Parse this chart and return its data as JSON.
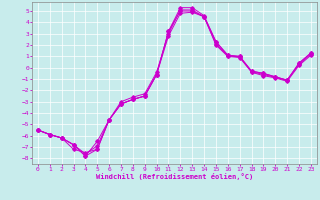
{
  "xlabel": "Windchill (Refroidissement éolien,°C)",
  "bg_color": "#c8ecec",
  "line_color": "#cc00cc",
  "grid_color": "#ffffff",
  "xlim": [
    -0.5,
    23.5
  ],
  "ylim": [
    -8.5,
    5.8
  ],
  "xticks": [
    0,
    1,
    2,
    3,
    4,
    5,
    6,
    7,
    8,
    9,
    10,
    11,
    12,
    13,
    14,
    15,
    16,
    17,
    18,
    19,
    20,
    21,
    22,
    23
  ],
  "yticks": [
    -8,
    -7,
    -6,
    -5,
    -4,
    -3,
    -2,
    -1,
    0,
    1,
    2,
    3,
    4,
    5
  ],
  "series1_x": [
    0,
    1,
    2,
    3,
    4,
    5,
    6,
    7,
    8,
    9,
    10,
    11,
    12,
    13,
    14,
    15,
    16,
    17,
    18,
    19,
    20,
    21,
    22,
    23
  ],
  "series1_y": [
    -5.5,
    -5.9,
    -6.2,
    -6.8,
    -7.8,
    -6.5,
    -4.6,
    -3.2,
    -2.8,
    -2.5,
    -0.6,
    3.2,
    5.3,
    5.3,
    4.6,
    2.3,
    1.1,
    1.0,
    -0.3,
    -0.5,
    -0.8,
    -1.1,
    0.4,
    1.3
  ],
  "series2_x": [
    0,
    1,
    2,
    3,
    4,
    5,
    6,
    7,
    8,
    9,
    10,
    11,
    12,
    13,
    14,
    15,
    16,
    17,
    18,
    19,
    20,
    21,
    22,
    23
  ],
  "series2_y": [
    -5.5,
    -5.9,
    -6.2,
    -7.2,
    -7.5,
    -7.2,
    -4.6,
    -3.2,
    -2.8,
    -2.5,
    -0.6,
    3.2,
    5.0,
    5.0,
    4.5,
    2.3,
    1.1,
    1.0,
    -0.3,
    -0.5,
    -0.8,
    -1.1,
    0.4,
    1.3
  ],
  "series3_x": [
    0,
    1,
    2,
    3,
    4,
    5,
    6,
    7,
    8,
    9,
    10,
    11,
    12,
    13,
    14,
    15,
    16,
    17,
    18,
    19,
    20,
    21,
    22,
    23
  ],
  "series3_y": [
    -5.5,
    -5.9,
    -6.2,
    -6.8,
    -7.8,
    -7.2,
    -4.6,
    -3.2,
    -2.8,
    -2.5,
    -0.6,
    2.8,
    4.8,
    4.9,
    4.5,
    2.0,
    1.0,
    0.9,
    -0.4,
    -0.7,
    -0.9,
    -1.2,
    0.2,
    1.1
  ],
  "series4_x": [
    0,
    1,
    2,
    3,
    4,
    5,
    6,
    7,
    8,
    9,
    10,
    11,
    12,
    13,
    14,
    15,
    16,
    17,
    18,
    19,
    20,
    21,
    22,
    23
  ],
  "series4_y": [
    -5.5,
    -5.9,
    -6.2,
    -6.8,
    -7.6,
    -6.9,
    -4.6,
    -3.0,
    -2.6,
    -2.3,
    -0.4,
    3.0,
    5.1,
    5.1,
    4.5,
    2.1,
    1.05,
    0.95,
    -0.35,
    -0.6,
    -0.85,
    -1.1,
    0.3,
    1.2
  ]
}
